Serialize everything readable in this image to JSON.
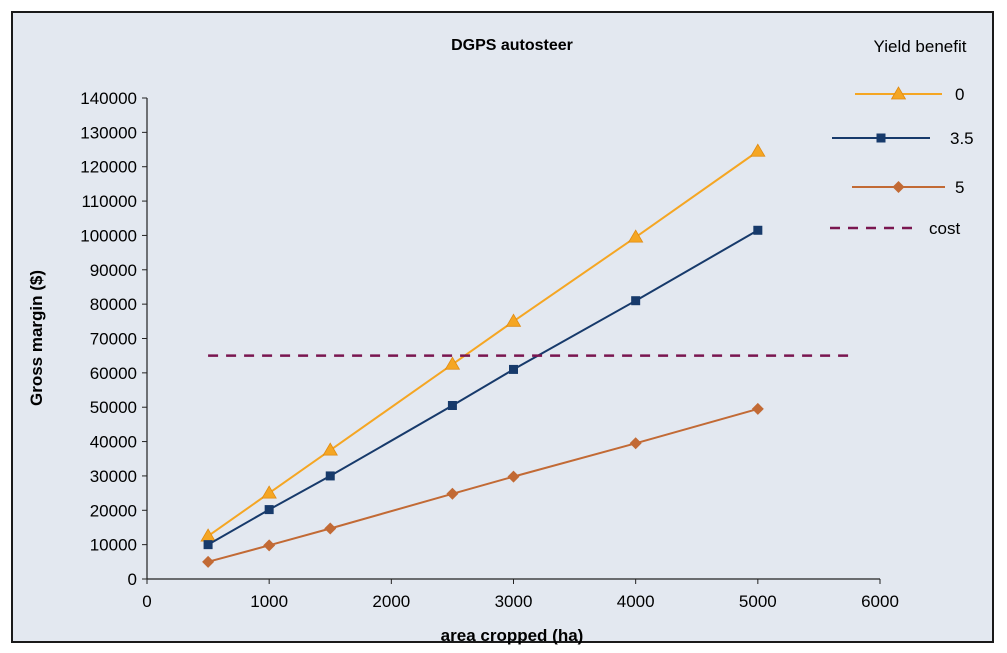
{
  "chart_data": {
    "type": "line",
    "title": "DGPS autosteer",
    "xlabel": "area cropped (ha)",
    "ylabel": "Gross margin ($)",
    "xlim": [
      0,
      6000
    ],
    "ylim": [
      0,
      140000
    ],
    "xticks": [
      0,
      1000,
      2000,
      3000,
      4000,
      5000,
      6000
    ],
    "yticks": [
      0,
      10000,
      20000,
      30000,
      40000,
      50000,
      60000,
      70000,
      80000,
      90000,
      100000,
      110000,
      120000,
      130000,
      140000
    ],
    "grid": false,
    "legend_title": "Yield benefit",
    "legend_position": "top-right",
    "series": [
      {
        "name": "0",
        "color": "#f5a623",
        "marker": "triangle",
        "points": [
          [
            500,
            12500
          ],
          [
            1000,
            25000
          ],
          [
            1500,
            37500
          ],
          [
            2500,
            62500
          ],
          [
            3000,
            75000
          ],
          [
            4000,
            99500
          ],
          [
            5000,
            124500
          ]
        ]
      },
      {
        "name": "3.5",
        "color": "#173a6b",
        "marker": "square",
        "points": [
          [
            500,
            10000
          ],
          [
            1000,
            20200
          ],
          [
            1500,
            30000
          ],
          [
            2500,
            50500
          ],
          [
            3000,
            61000
          ],
          [
            4000,
            81000
          ],
          [
            5000,
            101500
          ]
        ]
      },
      {
        "name": "5",
        "color": "#c26a35",
        "marker": "diamond",
        "points": [
          [
            500,
            5000
          ],
          [
            1000,
            9800
          ],
          [
            1500,
            14700
          ],
          [
            2500,
            24800
          ],
          [
            3000,
            29800
          ],
          [
            4000,
            39500
          ],
          [
            5000,
            49500
          ]
        ]
      },
      {
        "name": "cost",
        "color": "#7a1650",
        "marker": "none",
        "dashed": true,
        "points": [
          [
            500,
            65000
          ],
          [
            5750,
            65000
          ]
        ]
      }
    ]
  }
}
